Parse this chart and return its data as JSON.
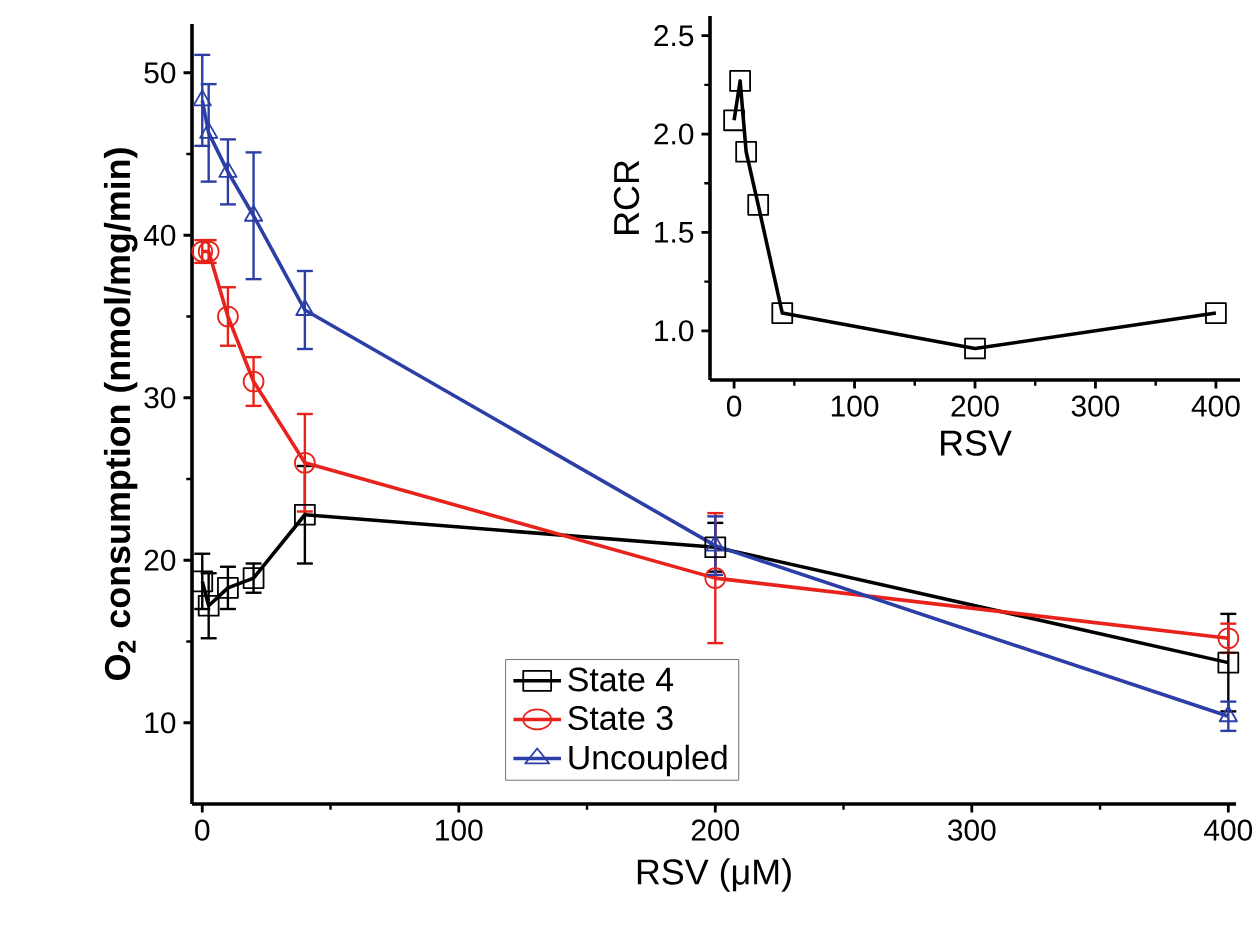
{
  "chart_data": [
    {
      "type": "line",
      "xlabel": "RSV (μM)",
      "ylabel": "O$_{2}$ consumption (nmol/mg/min)",
      "xlim": [
        -4,
        403
      ],
      "ylim": [
        5,
        53
      ],
      "xticks": [
        0,
        100,
        200,
        300,
        400
      ],
      "yticks": [
        10,
        20,
        30,
        40,
        50
      ],
      "legend": "bottom left",
      "grid": false,
      "x": [
        0,
        2.5,
        10,
        20,
        40,
        200,
        400
      ],
      "series": [
        {
          "name": "State 4",
          "color": "#000000",
          "marker": "square",
          "values": [
            18.7,
            17.2,
            18.3,
            18.9,
            22.8,
            20.8,
            13.7
          ],
          "errors": [
            1.7,
            2,
            1.3,
            0.9,
            3,
            1.5,
            3
          ]
        },
        {
          "name": "State 3",
          "color": "#e8231c",
          "marker": "circle",
          "values": [
            39.0,
            39.0,
            35.0,
            31.0,
            26.0,
            18.9,
            15.2
          ],
          "errors": [
            0.7,
            0.7,
            1.8,
            1.5,
            3,
            4,
            0.9
          ]
        },
        {
          "name": "Uncoupled",
          "color": "#2b3fa6",
          "marker": "triangle",
          "values": [
            48.3,
            46.3,
            43.9,
            41.2,
            35.4,
            20.9,
            10.4
          ],
          "errors": [
            2.8,
            3,
            2,
            3.9,
            2.4,
            1.8,
            0.9
          ]
        }
      ]
    },
    {
      "type": "line",
      "xlabel": "RSV",
      "ylabel": "RCR",
      "xlim": [
        -20,
        420
      ],
      "ylim": [
        0.75,
        2.6
      ],
      "xticks": [
        0,
        100,
        200,
        300,
        400
      ],
      "yticks": [
        {
          "value": 1,
          "label": "1.0"
        },
        {
          "value": 1.5,
          "label": "1.5"
        },
        {
          "value": 2,
          "label": "2.0"
        },
        {
          "value": 2.5,
          "label": "2.5"
        }
      ],
      "marker": "square",
      "x": [
        0,
        5,
        10,
        20,
        40,
        200,
        400
      ],
      "series": [
        {
          "color": "#000000",
          "values": [
            2.07,
            2.27,
            1.91,
            1.64,
            1.09,
            0.91,
            1.09
          ]
        }
      ]
    }
  ]
}
